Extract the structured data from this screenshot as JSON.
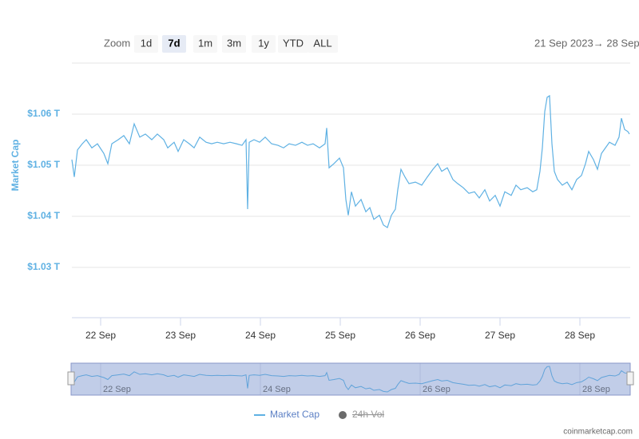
{
  "chart_data": {
    "type": "line",
    "zoom": {
      "label": "Zoom",
      "buttons": [
        "1d",
        "7d",
        "1m",
        "3m",
        "1y",
        "YTD",
        "ALL"
      ],
      "selected": 1
    },
    "range_text": "21 Sep 2023→  28 Sep",
    "y_label": "Market Cap",
    "xlim": [
      21.64,
      28.63
    ],
    "xticks": [
      {
        "value": 22,
        "label": "22 Sep"
      },
      {
        "value": 23,
        "label": "23 Sep"
      },
      {
        "value": 24,
        "label": "24 Sep"
      },
      {
        "value": 25,
        "label": "25 Sep"
      },
      {
        "value": 26,
        "label": "26 Sep"
      },
      {
        "value": 27,
        "label": "27 Sep"
      },
      {
        "value": 28,
        "label": "28 Sep"
      }
    ],
    "navigator_xticks": [
      {
        "value": 22,
        "label": "22 Sep"
      },
      {
        "value": 24,
        "label": "24 Sep"
      },
      {
        "value": 26,
        "label": "26 Sep"
      },
      {
        "value": 28,
        "label": "28 Sep"
      }
    ],
    "ylim": [
      1.02,
      1.07
    ],
    "yticks": [
      {
        "value": 1.03,
        "label": "$1.03 T"
      },
      {
        "value": 1.04,
        "label": "$1.04 T"
      },
      {
        "value": 1.05,
        "label": "$1.05 T"
      },
      {
        "value": 1.06,
        "label": "$1.06 T"
      }
    ],
    "grid": true,
    "x": [
      21.64,
      21.67,
      21.71,
      21.77,
      21.82,
      21.89,
      21.96,
      22.04,
      22.09,
      22.14,
      22.22,
      22.29,
      22.36,
      22.42,
      22.49,
      22.56,
      22.64,
      22.71,
      22.79,
      22.84,
      22.92,
      22.97,
      23.04,
      23.11,
      23.17,
      23.24,
      23.32,
      23.39,
      23.46,
      23.54,
      23.62,
      23.7,
      23.77,
      23.82,
      23.84,
      23.86,
      23.92,
      23.99,
      24.06,
      24.14,
      24.22,
      24.29,
      24.36,
      24.44,
      24.52,
      24.59,
      24.66,
      24.74,
      24.81,
      24.83,
      24.86,
      24.92,
      24.99,
      25.04,
      25.07,
      25.1,
      25.14,
      25.19,
      25.26,
      25.32,
      25.37,
      25.42,
      25.49,
      25.54,
      25.59,
      25.64,
      25.69,
      25.72,
      25.76,
      25.81,
      25.86,
      25.94,
      26.02,
      26.09,
      26.16,
      26.22,
      26.27,
      26.34,
      26.41,
      26.47,
      26.54,
      26.61,
      26.68,
      26.74,
      26.81,
      26.87,
      26.94,
      27.0,
      27.06,
      27.14,
      27.2,
      27.26,
      27.34,
      27.41,
      27.46,
      27.5,
      27.53,
      27.56,
      27.59,
      27.62,
      27.65,
      27.68,
      27.72,
      27.78,
      27.84,
      27.9,
      27.96,
      28.02,
      28.07,
      28.11,
      28.17,
      28.22,
      28.27,
      28.32,
      28.37,
      28.44,
      28.49,
      28.52,
      28.56,
      28.6,
      28.62
    ],
    "series": [
      {
        "name": "Market Cap",
        "color": "#5fb1e3",
        "values": [
          1.0511,
          1.0477,
          1.053,
          1.0542,
          1.055,
          1.0534,
          1.0542,
          1.0523,
          1.0503,
          1.0542,
          1.055,
          1.0558,
          1.0542,
          1.0581,
          1.0555,
          1.0561,
          1.055,
          1.0561,
          1.055,
          1.0534,
          1.0545,
          1.0527,
          1.055,
          1.0542,
          1.0534,
          1.0555,
          1.0545,
          1.0542,
          1.0545,
          1.0542,
          1.0545,
          1.0542,
          1.0539,
          1.055,
          1.0414,
          1.0545,
          1.055,
          1.0545,
          1.0555,
          1.0542,
          1.0539,
          1.0534,
          1.0542,
          1.0539,
          1.0545,
          1.0539,
          1.0542,
          1.0534,
          1.0542,
          1.0573,
          1.0495,
          1.0503,
          1.0514,
          1.0495,
          1.0433,
          1.0402,
          1.0448,
          1.042,
          1.0433,
          1.0409,
          1.0417,
          1.0394,
          1.0402,
          1.0383,
          1.0378,
          1.0402,
          1.0414,
          1.0452,
          1.0492,
          1.0477,
          1.0464,
          1.0467,
          1.0461,
          1.0477,
          1.0492,
          1.0503,
          1.0488,
          1.0495,
          1.0472,
          1.0464,
          1.0456,
          1.0445,
          1.0448,
          1.0436,
          1.0452,
          1.043,
          1.0441,
          1.042,
          1.0448,
          1.0441,
          1.0461,
          1.0452,
          1.0456,
          1.0448,
          1.0452,
          1.0488,
          1.0534,
          1.0605,
          1.0633,
          1.0636,
          1.0542,
          1.0488,
          1.0472,
          1.0461,
          1.0467,
          1.0452,
          1.0472,
          1.048,
          1.0503,
          1.0527,
          1.0511,
          1.0492,
          1.0523,
          1.0534,
          1.0545,
          1.0539,
          1.0555,
          1.0592,
          1.057,
          1.0566,
          1.0561
        ]
      }
    ],
    "hidden_legend_item": {
      "name": "24h Vol",
      "color": "#6b6b6b"
    },
    "credit": "coinmarketcap.com"
  }
}
